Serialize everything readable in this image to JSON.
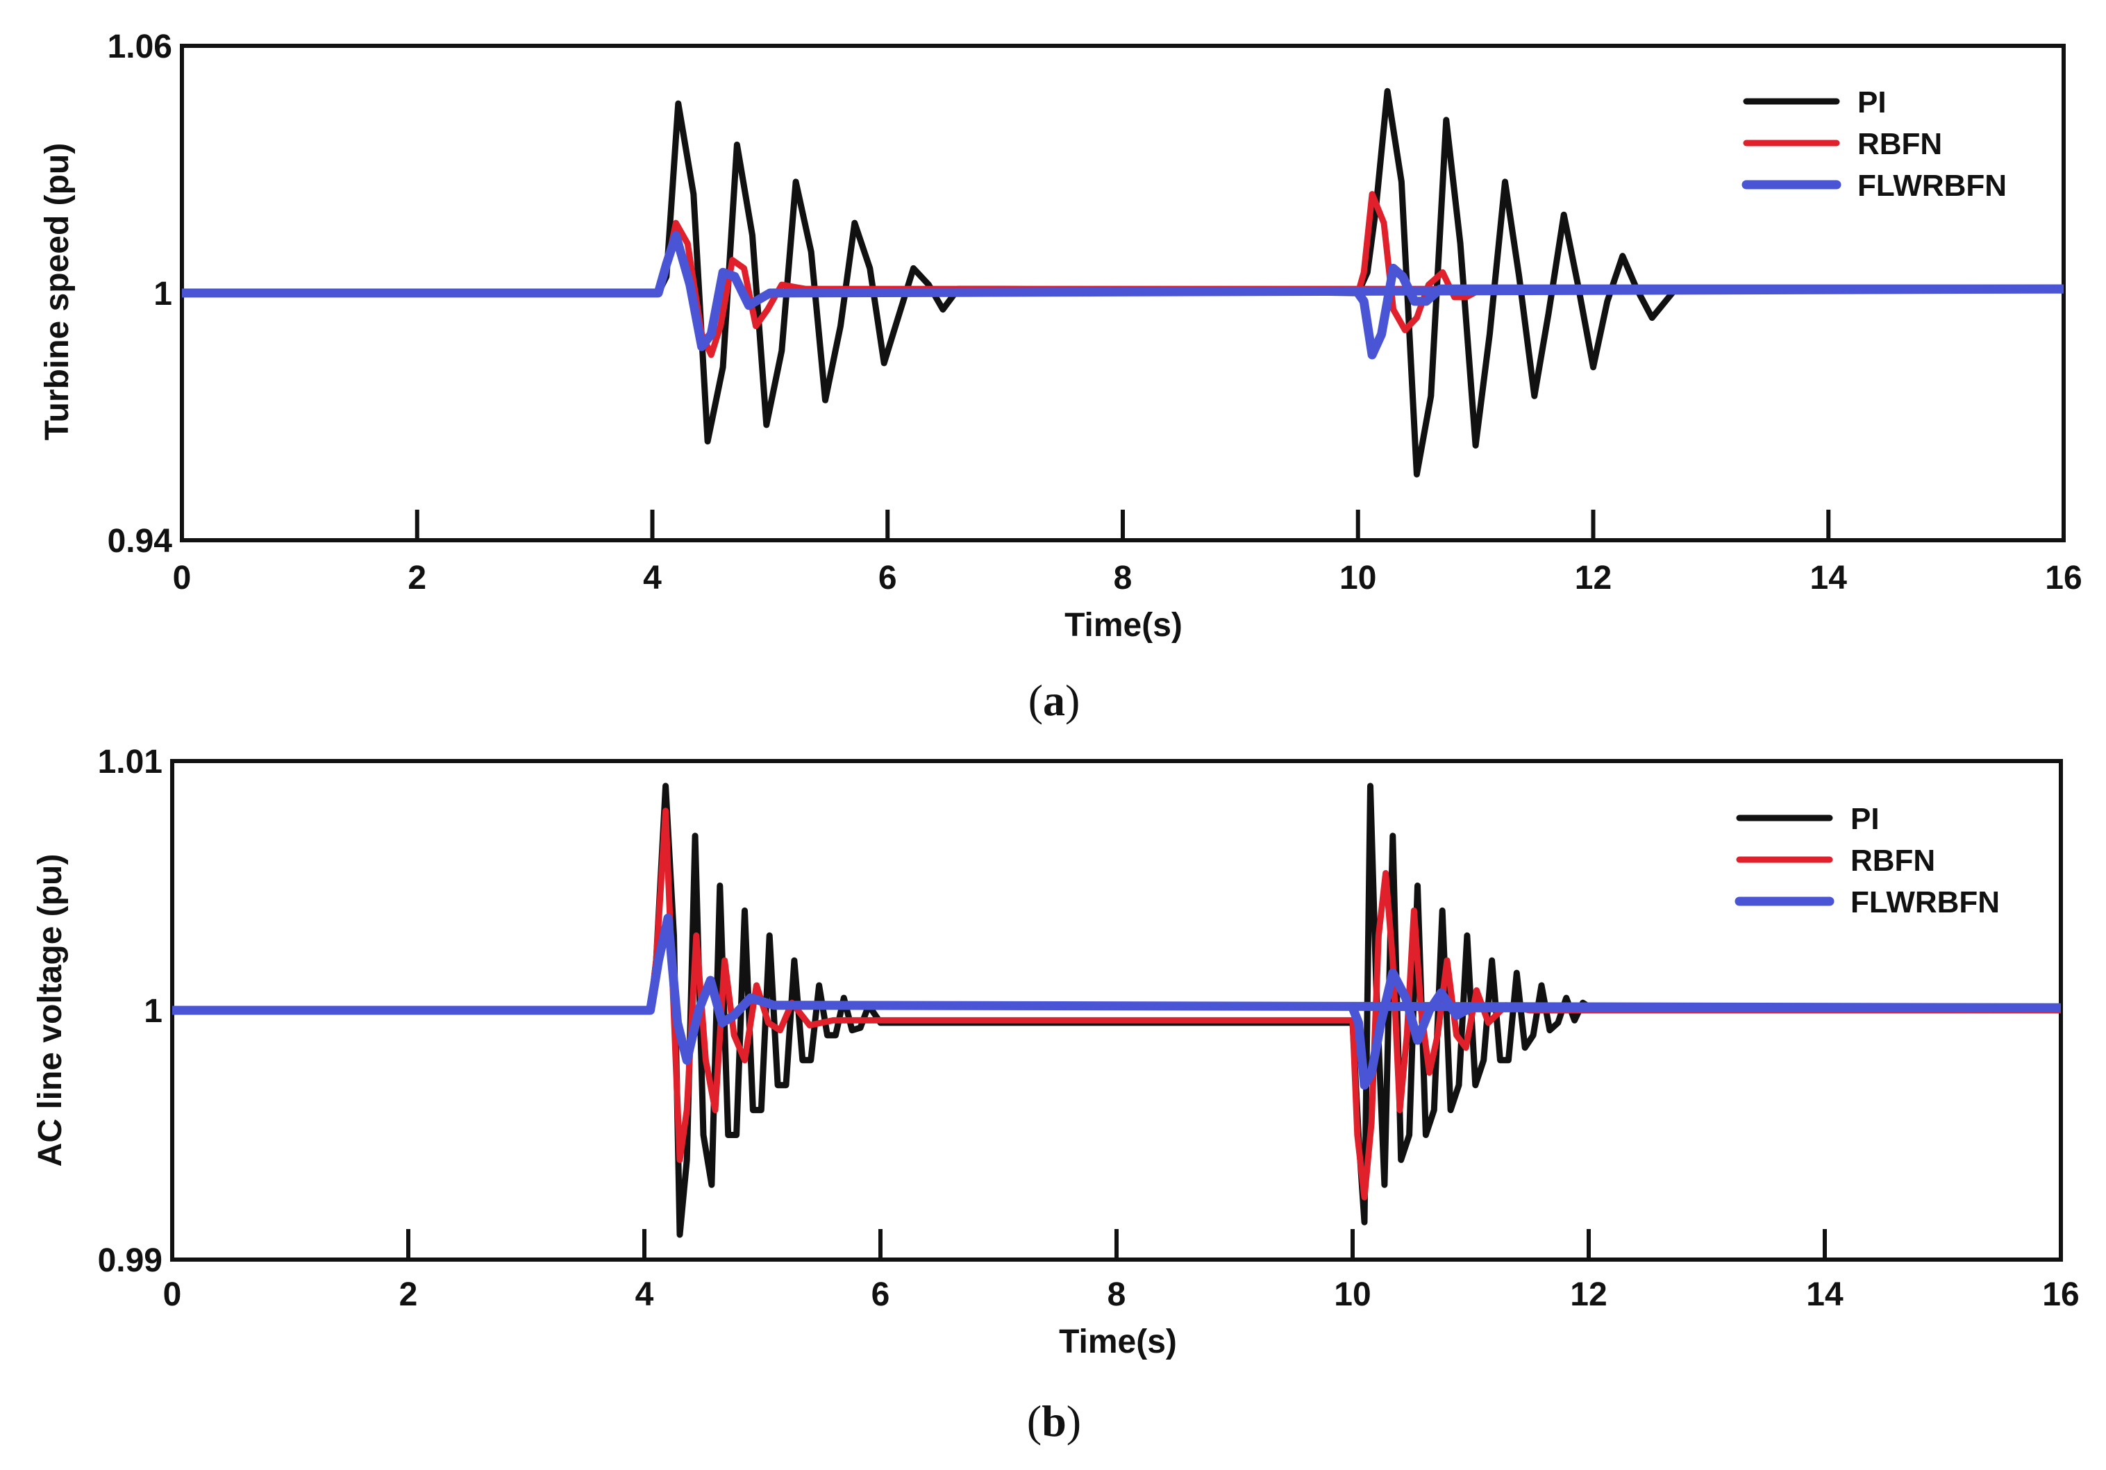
{
  "colors": {
    "PI": "#111111",
    "RBFN": "#e0202a",
    "FLWRBFN": "#4a55d6",
    "frame": "#111111"
  },
  "chart_data": [
    {
      "type": "line",
      "panel_label": "a",
      "xlabel": "Time(s)",
      "ylabel": "Turbine speed (pu)",
      "xlim": [
        0,
        16
      ],
      "ylim": [
        0.94,
        1.06
      ],
      "xticks": [
        0,
        2,
        4,
        6,
        8,
        10,
        12,
        14,
        16
      ],
      "xtick_labels": [
        "0",
        "2",
        "4",
        "6",
        "8",
        "10",
        "12",
        "14",
        "16"
      ],
      "yticks": [
        0.94,
        1,
        1.06
      ],
      "ytick_labels": [
        "0.94",
        "1",
        "1.06"
      ],
      "grid": false,
      "legend_position": "top-right",
      "series": [
        {
          "name": "PI",
          "color": "#111111",
          "x": [
            0,
            4.05,
            4.12,
            4.22,
            4.35,
            4.47,
            4.6,
            4.72,
            4.85,
            4.97,
            5.1,
            5.22,
            5.35,
            5.47,
            5.6,
            5.72,
            5.85,
            5.97,
            6.1,
            6.22,
            6.35,
            6.47,
            6.6,
            7,
            10,
            10.08,
            10.15,
            10.25,
            10.37,
            10.5,
            10.62,
            10.75,
            10.87,
            11,
            11.12,
            11.25,
            11.37,
            11.5,
            11.62,
            11.75,
            11.87,
            12,
            12.12,
            12.25,
            12.37,
            12.5,
            12.7,
            16
          ],
          "y": [
            1,
            1,
            1.004,
            1.046,
            1.024,
            0.964,
            0.982,
            1.036,
            1.014,
            0.968,
            0.986,
            1.027,
            1.01,
            0.974,
            0.992,
            1.017,
            1.006,
            0.983,
            0.995,
            1.006,
            1.002,
            0.996,
            1.001,
            1.001,
            1,
            1.005,
            1.02,
            1.049,
            1.027,
            0.956,
            0.975,
            1.042,
            1.012,
            0.963,
            0.99,
            1.027,
            1.004,
            0.975,
            0.995,
            1.019,
            1.002,
            0.982,
            0.998,
            1.009,
            1.001,
            0.994,
            1.001,
            1.001
          ]
        },
        {
          "name": "RBFN",
          "color": "#e0202a",
          "x": [
            0,
            4.05,
            4.12,
            4.2,
            4.3,
            4.42,
            4.5,
            4.58,
            4.68,
            4.78,
            4.88,
            4.98,
            5.1,
            5.3,
            16
          ],
          "y": [
            1,
            1,
            1.006,
            1.017,
            1.012,
            0.99,
            0.985,
            0.992,
            1.008,
            1.006,
            0.992,
            0.996,
            1.002,
            1.001,
            1.001
          ]
        },
        {
          "name": "FLWRBFN",
          "color": "#4a55d6",
          "x": [
            0,
            4.05,
            4.12,
            4.2,
            4.32,
            4.42,
            4.5,
            4.6,
            4.7,
            4.82,
            5.0,
            16
          ],
          "y": [
            1,
            1,
            1.007,
            1.014,
            1.002,
            0.987,
            0.99,
            1.005,
            1.004,
            0.997,
            1.0,
            1.001
          ]
        },
        {
          "name": "RBFN",
          "color": "#e0202a",
          "x": [
            10,
            10.05,
            10.12,
            10.22,
            10.3,
            10.4,
            10.5,
            10.6,
            10.72,
            10.82,
            10.92,
            11.05,
            11.3,
            16
          ],
          "y": [
            1,
            1.005,
            1.024,
            1.017,
            0.996,
            0.991,
            0.994,
            1.002,
            1.005,
            0.999,
            0.999,
            1.001,
            1.001,
            1.001
          ]
        },
        {
          "name": "FLWRBFN",
          "color": "#4a55d6",
          "x": [
            10,
            10.05,
            10.12,
            10.2,
            10.3,
            10.38,
            10.48,
            10.58,
            10.7,
            10.85,
            11.1,
            16
          ],
          "y": [
            1,
            0.998,
            0.985,
            0.99,
            1.006,
            1.004,
            0.998,
            0.998,
            1.001,
            1.001,
            1.001,
            1.001
          ]
        }
      ],
      "legend": [
        {
          "label": "PI",
          "color": "#111111"
        },
        {
          "label": "RBFN",
          "color": "#e0202a"
        },
        {
          "label": "FLWRBFN",
          "color": "#4a55d6"
        }
      ]
    },
    {
      "type": "line",
      "panel_label": "b",
      "xlabel": "Time(s)",
      "ylabel": "AC line voltage (pu)",
      "xlim": [
        0,
        16
      ],
      "ylim": [
        0.99,
        1.01
      ],
      "xticks": [
        0,
        2,
        4,
        6,
        8,
        10,
        12,
        14,
        16
      ],
      "xtick_labels": [
        "0",
        "2",
        "4",
        "6",
        "8",
        "10",
        "12",
        "14",
        "16"
      ],
      "yticks": [
        0.99,
        1,
        1.01
      ],
      "ytick_labels": [
        "0.99",
        "1",
        "1.01"
      ],
      "grid": false,
      "legend_position": "top-right",
      "series": [
        {
          "name": "PI",
          "color": "#111111",
          "x": [
            0,
            4.05,
            4.1,
            4.18,
            4.25,
            4.3,
            4.36,
            4.43,
            4.5,
            4.57,
            4.64,
            4.71,
            4.78,
            4.85,
            4.92,
            4.99,
            5.06,
            5.13,
            5.2,
            5.27,
            5.34,
            5.41,
            5.48,
            5.55,
            5.62,
            5.69,
            5.76,
            5.83,
            5.9,
            6.0,
            6.2,
            10,
            10.05,
            10.1,
            10.15,
            10.2,
            10.27,
            10.34,
            10.41,
            10.48,
            10.55,
            10.62,
            10.69,
            10.76,
            10.83,
            10.9,
            10.97,
            11.04,
            11.11,
            11.18,
            11.25,
            11.32,
            11.39,
            11.46,
            11.53,
            11.6,
            11.67,
            11.74,
            11.81,
            11.88,
            11.95,
            12.05,
            12.2,
            16
          ],
          "y": [
            1,
            1,
            1.002,
            1.009,
            1.003,
            0.991,
            0.994,
            1.007,
            0.995,
            0.993,
            1.005,
            0.995,
            0.995,
            1.004,
            0.996,
            0.996,
            1.003,
            0.997,
            0.997,
            1.002,
            0.998,
            0.998,
            1.001,
            0.999,
            0.999,
            1.0005,
            0.9992,
            0.9993,
            1.0002,
            0.9995,
            0.9995,
            0.9995,
            0.995,
            0.9915,
            1.009,
            1.001,
            0.993,
            1.007,
            0.994,
            0.995,
            1.005,
            0.995,
            0.996,
            1.004,
            0.996,
            0.997,
            1.003,
            0.997,
            0.998,
            1.002,
            0.998,
            0.998,
            1.0015,
            0.9985,
            0.999,
            1.001,
            0.9992,
            0.9995,
            1.0005,
            0.9996,
            1.0003,
            1.0,
            1.0,
            1.0
          ]
        },
        {
          "name": "RBFN",
          "color": "#e0202a",
          "x": [
            0,
            4.05,
            4.1,
            4.18,
            4.24,
            4.3,
            4.36,
            4.44,
            4.52,
            4.6,
            4.68,
            4.76,
            4.85,
            4.95,
            5.05,
            5.15,
            5.25,
            5.4,
            5.6,
            6.0,
            10,
            10.04,
            10.1,
            10.16,
            10.22,
            10.28,
            10.34,
            10.4,
            10.46,
            10.52,
            10.58,
            10.65,
            10.72,
            10.8,
            10.88,
            10.96,
            11.05,
            11.15,
            11.3,
            11.5,
            16
          ],
          "y": [
            1,
            1,
            1.002,
            1.008,
            1.001,
            0.994,
            0.996,
            1.003,
            0.998,
            0.996,
            1.002,
            0.999,
            0.998,
            1.001,
            0.9995,
            0.9992,
            1.0003,
            0.9994,
            0.9996,
            0.9996,
            0.9996,
            0.995,
            0.9925,
            0.9955,
            1.003,
            1.0055,
            1.002,
            0.996,
            0.999,
            1.004,
            1.0,
            0.9975,
            0.999,
            1.002,
            0.999,
            0.9985,
            1.0008,
            0.9995,
            1.0002,
            1.0,
            1.0
          ]
        },
        {
          "name": "FLWRBFN",
          "color": "#4a55d6",
          "x": [
            0,
            4.05,
            4.12,
            4.2,
            4.28,
            4.36,
            4.46,
            4.56,
            4.66,
            4.76,
            4.9,
            5.1,
            5.4,
            16
          ],
          "y": [
            1,
            1,
            1.002,
            1.0037,
            0.9995,
            0.998,
            1.0,
            1.0012,
            0.9995,
            0.9998,
            1.0005,
            1.0002,
            1.0002,
            1.0001
          ]
        },
        {
          "name": "FLWRBFN",
          "color": "#4a55d6",
          "x": [
            10,
            10.05,
            10.1,
            10.16,
            10.24,
            10.34,
            10.45,
            10.55,
            10.65,
            10.75,
            10.88,
            11.0,
            11.2,
            16
          ],
          "y": [
            1.0001,
            0.9995,
            0.997,
            0.9975,
            0.9995,
            1.0015,
            1.0005,
            0.9988,
            1.0,
            1.0007,
            0.9998,
            1.0001,
            1.0001,
            1.0001
          ]
        }
      ],
      "legend": [
        {
          "label": "PI",
          "color": "#111111"
        },
        {
          "label": "RBFN",
          "color": "#e0202a"
        },
        {
          "label": "FLWRBFN",
          "color": "#4a55d6"
        }
      ]
    }
  ]
}
